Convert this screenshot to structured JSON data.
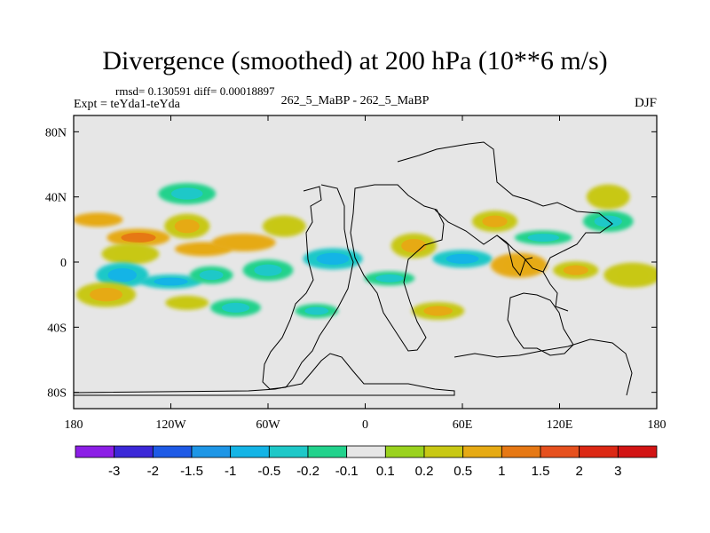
{
  "header": {
    "title": "Divergence (smoothed) at 200 hPa (10**6 m/s)",
    "stats": "rmsd= 0.130591 diff= 0.00018897",
    "expt": "Expt = teYda1-teYda",
    "case": "262_5_MaBP - 262_5_MaBP",
    "season": "DJF"
  },
  "chart_data": {
    "type": "heatmap",
    "title": "Divergence (smoothed) at 200 hPa (10**6 m/s)",
    "x_range": [
      -180,
      180
    ],
    "y_range": [
      -90,
      90
    ],
    "x_ticks": [
      {
        "value": -180,
        "label": "180"
      },
      {
        "value": -120,
        "label": "120W"
      },
      {
        "value": -60,
        "label": "60W"
      },
      {
        "value": 0,
        "label": "0"
      },
      {
        "value": 60,
        "label": "60E"
      },
      {
        "value": 120,
        "label": "120E"
      },
      {
        "value": 180,
        "label": "180"
      }
    ],
    "y_ticks": [
      {
        "value": 80,
        "label": "80N"
      },
      {
        "value": 40,
        "label": "40N"
      },
      {
        "value": 0,
        "label": "0"
      },
      {
        "value": -40,
        "label": "40S"
      },
      {
        "value": -80,
        "label": "80S"
      }
    ],
    "colorbar": {
      "labels": [
        "-3",
        "-2",
        "-1.5",
        "-1",
        "-0.5",
        "-0.2",
        "-0.1",
        "0.1",
        "0.2",
        "0.5",
        "1",
        "1.5",
        "2",
        "3"
      ],
      "colors": [
        "#8c1ee6",
        "#3c28d8",
        "#1e5ae6",
        "#1e96e6",
        "#14b4e6",
        "#1ec8c8",
        "#22d28c",
        "#e6e6e6",
        "#9ad21e",
        "#c8c814",
        "#e6aa14",
        "#e67814",
        "#e6501e",
        "#dc2814",
        "#d21414"
      ]
    },
    "background_color": "#e6e6e6",
    "features": [
      {
        "lon": -165,
        "lat": 26,
        "value": 0.5
      },
      {
        "lon": -140,
        "lat": 15,
        "value": 0.8
      },
      {
        "lon": -145,
        "lat": 5,
        "value": 0.2
      },
      {
        "lon": -110,
        "lat": 22,
        "value": 0.3
      },
      {
        "lon": -100,
        "lat": 8,
        "value": 0.5
      },
      {
        "lon": -75,
        "lat": 12,
        "value": 0.5
      },
      {
        "lon": -50,
        "lat": 22,
        "value": 0.2
      },
      {
        "lon": -150,
        "lat": -8,
        "value": -0.3
      },
      {
        "lon": -120,
        "lat": -12,
        "value": -0.4
      },
      {
        "lon": -95,
        "lat": -8,
        "value": -0.2
      },
      {
        "lon": -60,
        "lat": -5,
        "value": -0.2
      },
      {
        "lon": -160,
        "lat": -20,
        "value": 0.3
      },
      {
        "lon": -110,
        "lat": -25,
        "value": 0.2
      },
      {
        "lon": -80,
        "lat": -28,
        "value": -0.2
      },
      {
        "lon": -20,
        "lat": 2,
        "value": -0.3
      },
      {
        "lon": 30,
        "lat": 10,
        "value": 0.3
      },
      {
        "lon": 15,
        "lat": -10,
        "value": -0.2
      },
      {
        "lon": 60,
        "lat": 2,
        "value": -0.3
      },
      {
        "lon": 80,
        "lat": 25,
        "value": 0.3
      },
      {
        "lon": 95,
        "lat": -2,
        "value": 0.5
      },
      {
        "lon": 110,
        "lat": 15,
        "value": -0.2
      },
      {
        "lon": 130,
        "lat": -5,
        "value": 0.3
      },
      {
        "lon": 150,
        "lat": 25,
        "value": -0.2
      },
      {
        "lon": 165,
        "lat": -8,
        "value": 0.2
      },
      {
        "lon": -30,
        "lat": -30,
        "value": -0.2
      },
      {
        "lon": 45,
        "lat": -30,
        "value": 0.3
      },
      {
        "lon": -110,
        "lat": 42,
        "value": -0.2
      },
      {
        "lon": 150,
        "lat": 40,
        "value": 0.2
      }
    ]
  }
}
